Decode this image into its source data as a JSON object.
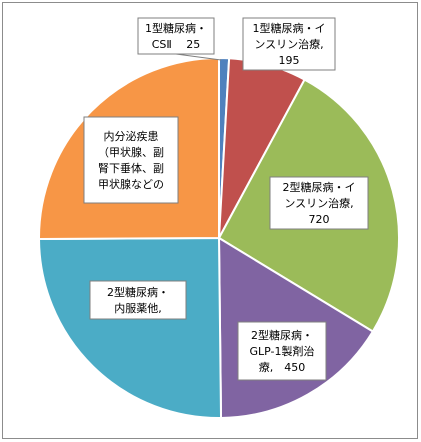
{
  "chart_data": {
    "type": "pie",
    "title": "",
    "slices": [
      {
        "label_lines": [
          "1型糖尿病・",
          "CSⅡ　 25"
        ],
        "value": 25,
        "color": "#4F81BD"
      },
      {
        "label_lines": [
          "1型糖尿病・イ",
          "ンスリン治療,",
          "195"
        ],
        "value": 195,
        "color": "#C0504D"
      },
      {
        "label_lines": [
          "2型糖尿病・イ",
          "ンスリン治療,",
          "720"
        ],
        "value": 720,
        "color": "#9BBB59"
      },
      {
        "label_lines": [
          "2型糖尿病・",
          "GLP-1製剤治",
          "療,　450"
        ],
        "value": 450,
        "color": "#8064A2"
      },
      {
        "label_lines": [
          "2型糖尿病・",
          "内服薬他,"
        ],
        "value": 700,
        "color": "#4BACC6"
      },
      {
        "label_lines": [
          "内分泌疾患",
          "（甲状腺、副",
          "腎下垂体、副",
          "甲状腺などの"
        ],
        "value": 700,
        "color": "#F79646"
      }
    ],
    "start_angle_deg": 0,
    "direction": "clockwise",
    "legend": "none"
  }
}
